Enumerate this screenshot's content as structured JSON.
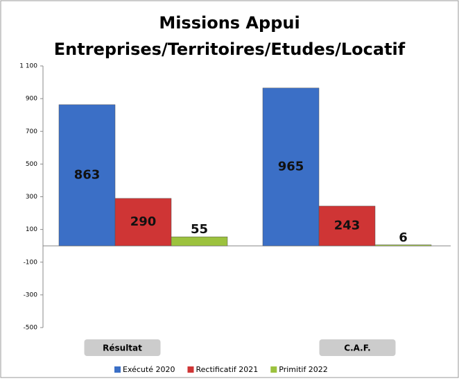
{
  "chart_data": {
    "type": "bar",
    "title": [
      "Missions Appui",
      "Entreprises/Territoires/Etudes/Locatif"
    ],
    "categories": [
      "Résultat",
      "C.A.F."
    ],
    "series": [
      {
        "name": "Exécuté 2020",
        "color": "#3b6fc6",
        "values": [
          863,
          965
        ]
      },
      {
        "name": "Rectificatif 2021",
        "color": "#cf3535",
        "values": [
          290,
          243
        ]
      },
      {
        "name": "Primitif 2022",
        "color": "#9cc23e",
        "values": [
          55,
          6
        ]
      }
    ],
    "ylim": [
      -500,
      1100
    ],
    "yticks": [
      -500,
      -300,
      -100,
      100,
      300,
      500,
      700,
      900,
      {
        "value": 1100,
        "label": "1 100"
      }
    ],
    "grid": false,
    "legend": "bottom"
  }
}
